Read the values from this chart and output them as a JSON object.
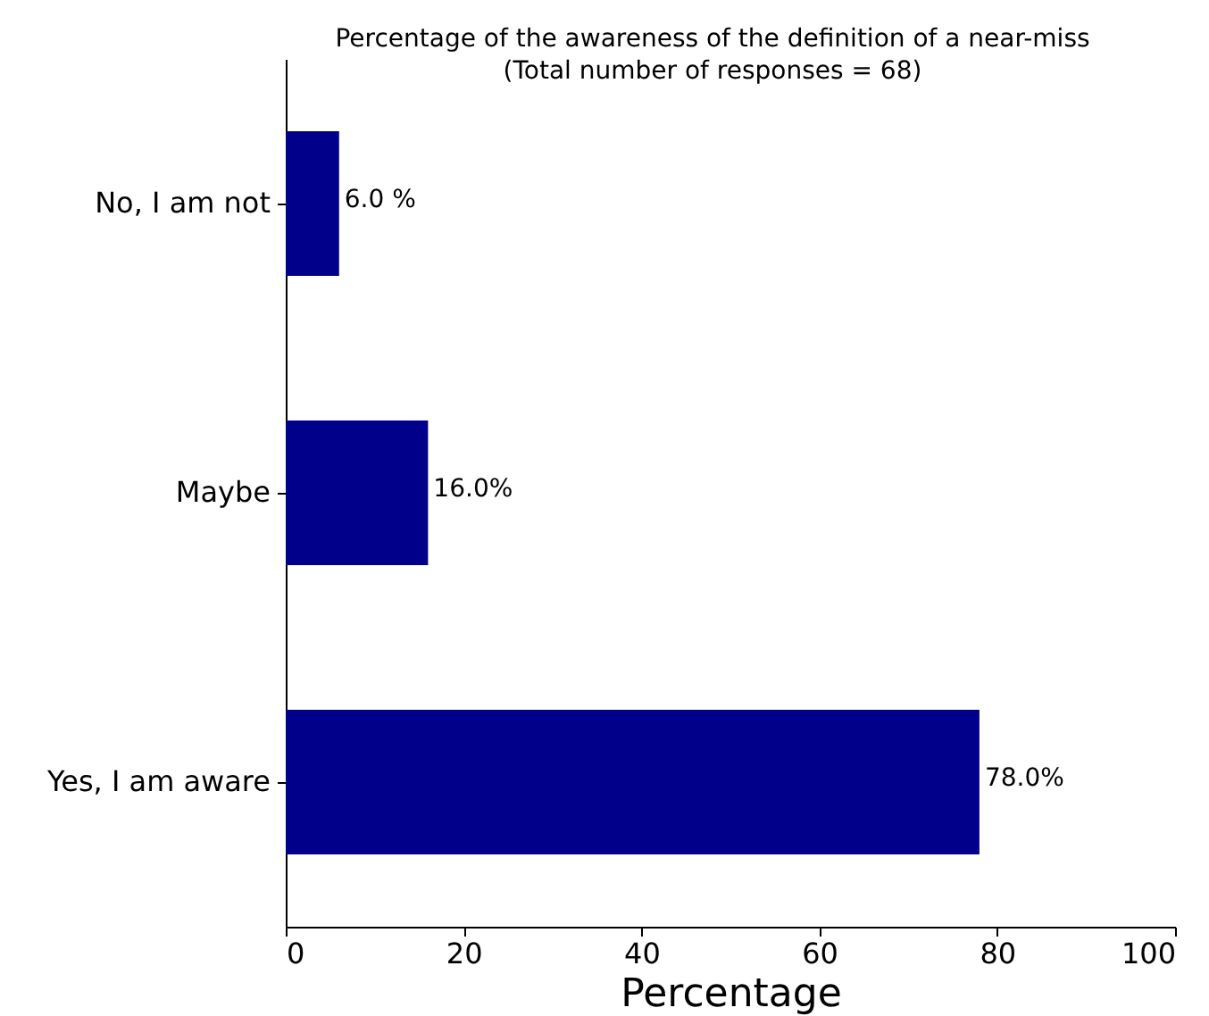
{
  "chart_data": {
    "type": "bar",
    "orientation": "horizontal",
    "title": "Percentage of the awareness of the definition of a near-miss",
    "subtitle": "(Total number of responses =  68)",
    "xlabel": "Percentage",
    "categories": [
      "No, I am not",
      "Maybe",
      "Yes, I am aware"
    ],
    "values": [
      6,
      16,
      78
    ],
    "color": "#00008b",
    "value_labels": [
      "6.0  %",
      "16.0%",
      "78.0%"
    ],
    "xlim": [
      0,
      100
    ],
    "xticks": [
      0,
      20,
      40,
      60,
      80,
      100
    ],
    "grid": false
  }
}
